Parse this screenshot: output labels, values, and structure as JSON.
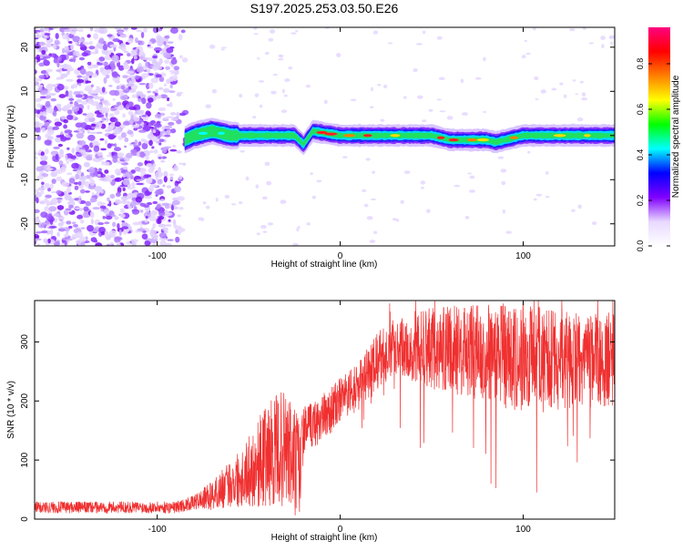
{
  "title": "S197.2025.253.03.50.E26",
  "chart_data": [
    {
      "type": "heatmap",
      "title": "S197.2025.253.03.50.E26",
      "xlabel": "Height of straight line (km)",
      "ylabel": "Frequency (Hz)",
      "xlim": [
        -167,
        150
      ],
      "ylim": [
        -25,
        24.5
      ],
      "x_ticks": [
        -100,
        0,
        100
      ],
      "x_tick_labels": [
        "-100",
        "0",
        "100"
      ],
      "y_ticks": [
        -20,
        -10,
        0,
        10,
        20
      ],
      "y_tick_labels": [
        "-20",
        "-10",
        "0",
        "10",
        "20"
      ],
      "noise_region_x": [
        -167,
        -83
      ],
      "signal_band_center_hz": [
        {
          "x": -85,
          "f": -1
        },
        {
          "x": -80,
          "f": 0
        },
        {
          "x": -70,
          "f": 1
        },
        {
          "x": -60,
          "f": 0
        },
        {
          "x": -40,
          "f": 0
        },
        {
          "x": -25,
          "f": 0
        },
        {
          "x": -20,
          "f": -2
        },
        {
          "x": -15,
          "f": 1
        },
        {
          "x": 0,
          "f": 0
        },
        {
          "x": 50,
          "f": 0
        },
        {
          "x": 60,
          "f": -1
        },
        {
          "x": 80,
          "f": -1
        },
        {
          "x": 85,
          "f": -1.5
        },
        {
          "x": 100,
          "f": 0
        },
        {
          "x": 150,
          "f": 0
        }
      ],
      "colorbar": {
        "label": "Normalized spectral amplitude",
        "ticks": [
          0.0,
          0.2,
          0.4,
          0.6,
          0.8
        ],
        "tick_labels": [
          "0.0",
          "0.2",
          "0.4",
          "0.6",
          "0.8"
        ],
        "range": [
          0,
          0.96
        ],
        "colors": [
          "#ffffff",
          "#e8d8ff",
          "#8000ff",
          "#0000ff",
          "#00ffff",
          "#00ff00",
          "#ffff00",
          "#ff8000",
          "#ff0000",
          "#ff0080"
        ]
      }
    },
    {
      "type": "line",
      "xlabel": "Height of straight line (km)",
      "ylabel": "SNR (10 * v/v)",
      "xlim": [
        -167,
        150
      ],
      "ylim": [
        0,
        370
      ],
      "x_ticks": [
        -100,
        0,
        100
      ],
      "x_tick_labels": [
        "-100",
        "0",
        "100"
      ],
      "y_ticks": [
        0,
        100,
        200,
        300
      ],
      "y_tick_labels": [
        "0",
        "100",
        "200",
        "300"
      ],
      "line_color": "#f03030",
      "trend": [
        {
          "x": -167,
          "mean": 20,
          "spread": 10
        },
        {
          "x": -90,
          "mean": 20,
          "spread": 10
        },
        {
          "x": -80,
          "mean": 28,
          "spread": 12
        },
        {
          "x": -70,
          "mean": 40,
          "spread": 25
        },
        {
          "x": -60,
          "mean": 60,
          "spread": 40
        },
        {
          "x": -50,
          "mean": 80,
          "spread": 60
        },
        {
          "x": -40,
          "mean": 110,
          "spread": 90
        },
        {
          "x": -30,
          "mean": 120,
          "spread": 100
        },
        {
          "x": -22,
          "mean": 80,
          "spread": 100
        },
        {
          "x": -20,
          "mean": 150,
          "spread": 40
        },
        {
          "x": -10,
          "mean": 170,
          "spread": 40
        },
        {
          "x": 0,
          "mean": 200,
          "spread": 40
        },
        {
          "x": 10,
          "mean": 225,
          "spread": 40
        },
        {
          "x": 20,
          "mean": 265,
          "spread": 50
        },
        {
          "x": 30,
          "mean": 295,
          "spread": 50
        },
        {
          "x": 50,
          "mean": 290,
          "spread": 70
        },
        {
          "x": 70,
          "mean": 285,
          "spread": 80
        },
        {
          "x": 90,
          "mean": 275,
          "spread": 90
        },
        {
          "x": 110,
          "mean": 270,
          "spread": 90
        },
        {
          "x": 130,
          "mean": 268,
          "spread": 80
        },
        {
          "x": 150,
          "mean": 270,
          "spread": 80
        }
      ]
    }
  ]
}
